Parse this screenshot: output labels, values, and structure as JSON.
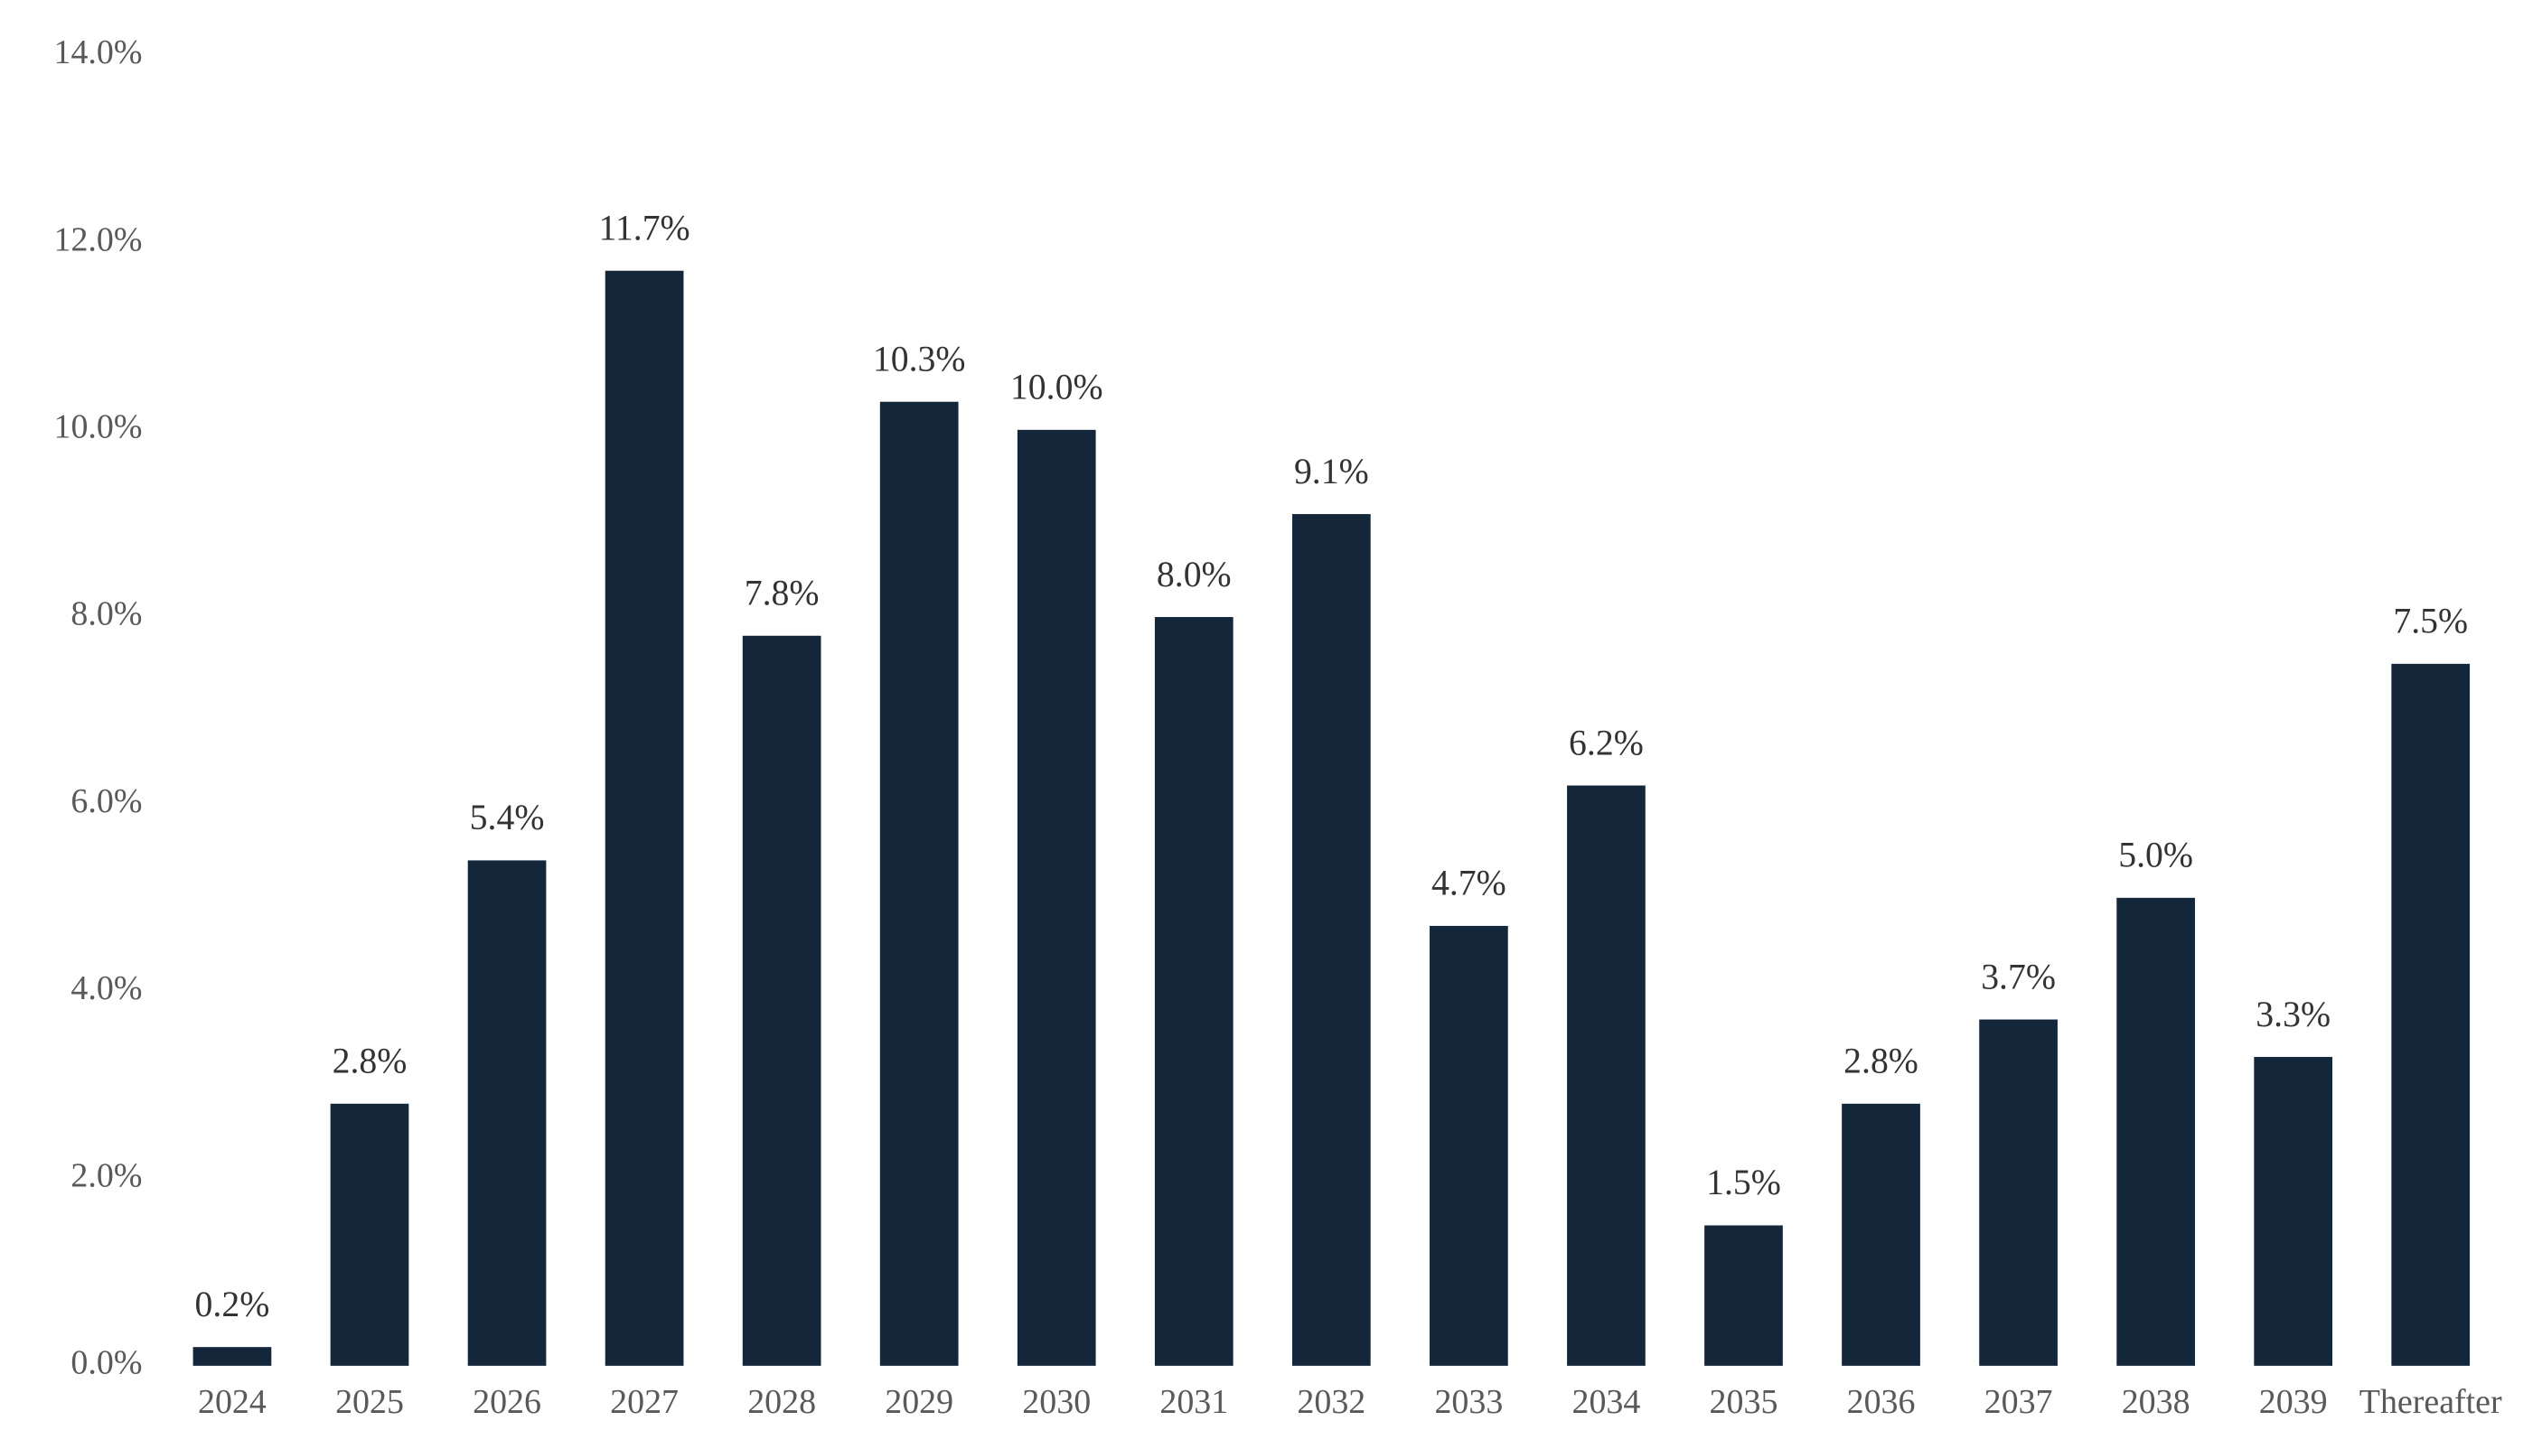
{
  "chart_data": {
    "type": "bar",
    "categories": [
      "2024",
      "2025",
      "2026",
      "2027",
      "2028",
      "2029",
      "2030",
      "2031",
      "2032",
      "2033",
      "2034",
      "2035",
      "2036",
      "2037",
      "2038",
      "2039",
      "Thereafter"
    ],
    "values": [
      0.2,
      2.8,
      5.4,
      11.7,
      7.8,
      10.3,
      10.0,
      8.0,
      9.1,
      4.7,
      6.2,
      1.5,
      2.8,
      3.7,
      5.0,
      3.3,
      7.5
    ],
    "value_labels": [
      "0.2%",
      "2.8%",
      "5.4%",
      "11.7%",
      "7.8%",
      "10.3%",
      "10.0%",
      "8.0%",
      "9.1%",
      "4.7%",
      "6.2%",
      "1.5%",
      "2.8%",
      "3.7%",
      "5.0%",
      "3.3%",
      "7.5%"
    ],
    "color": "#14263a",
    "ylim": [
      0,
      14
    ],
    "yticks": [
      {
        "value": 0,
        "label": "0.0%"
      },
      {
        "value": 2,
        "label": "2.0%"
      },
      {
        "value": 4,
        "label": "4.0%"
      },
      {
        "value": 6,
        "label": "6.0%"
      },
      {
        "value": 8,
        "label": "8.0%"
      },
      {
        "value": 10,
        "label": "10.0%"
      },
      {
        "value": 12,
        "label": "12.0%"
      },
      {
        "value": 14,
        "label": "14.0%"
      }
    ],
    "grid": false
  }
}
